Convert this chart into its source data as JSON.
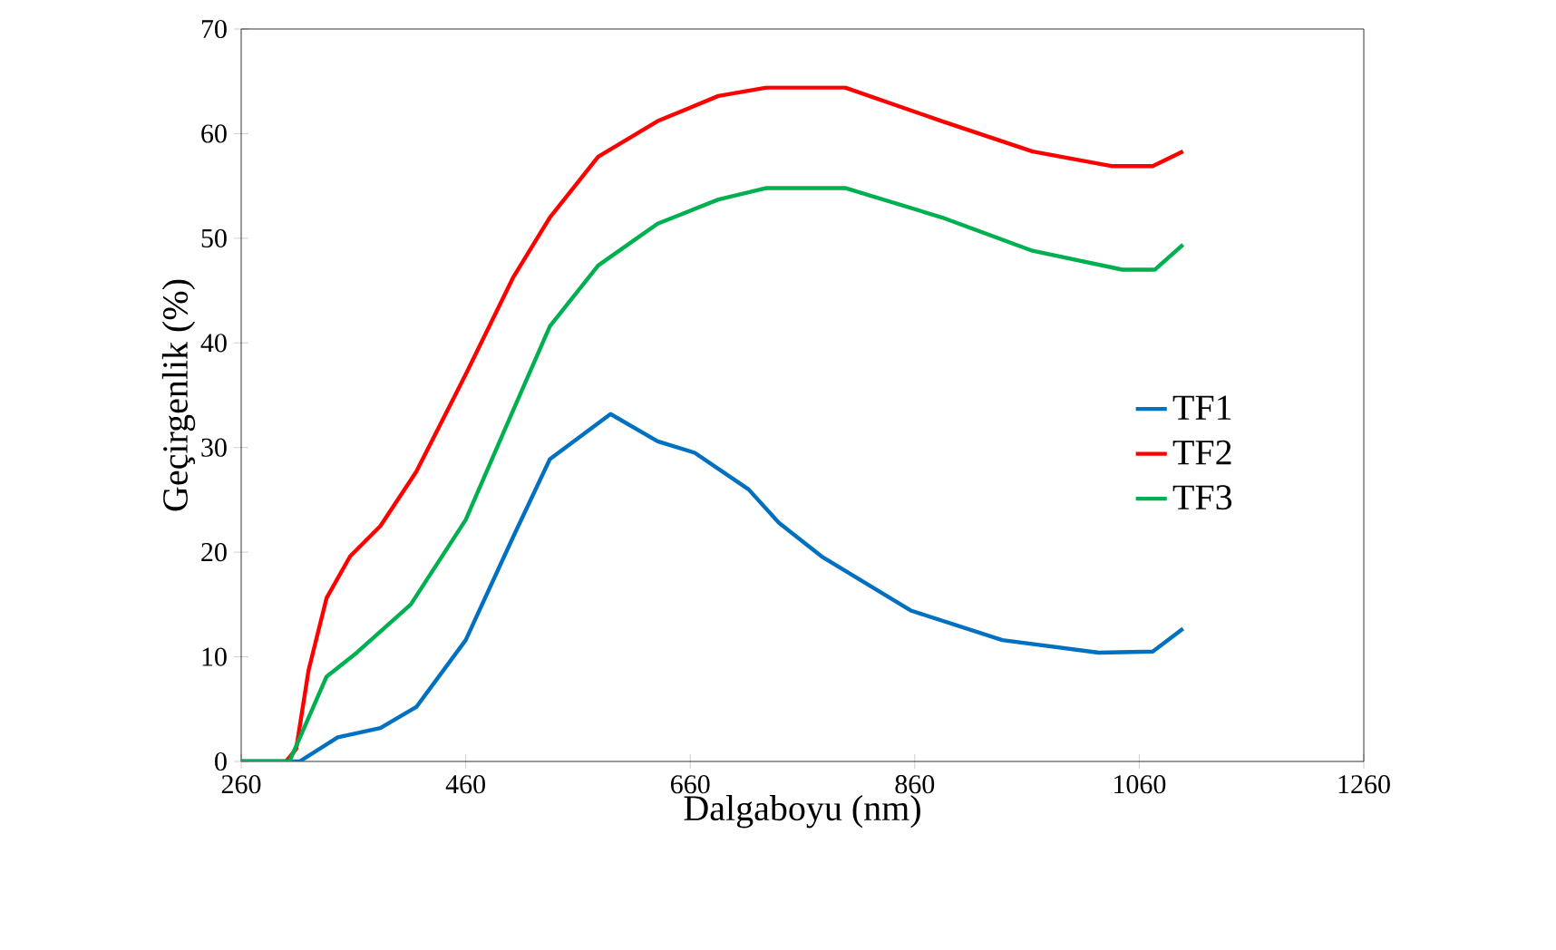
{
  "chart_data": {
    "type": "line",
    "xlabel": "Dalgaboyu (nm)",
    "ylabel": "Geçirgenlik (%)",
    "xlim": [
      260,
      1260
    ],
    "ylim": [
      0,
      70
    ],
    "xticks": [
      260,
      460,
      660,
      860,
      1060,
      1260
    ],
    "yticks": [
      0,
      10,
      20,
      30,
      40,
      50,
      60,
      70
    ],
    "grid": false,
    "legend": "right",
    "marker": "none",
    "line_style": "solid",
    "series": [
      {
        "name": "TF1",
        "color": "#0070c0",
        "x": [
          260,
          312,
          346,
          384,
          416,
          460,
          502,
          535,
          589,
          631,
          664,
          712,
          739,
          777,
          857,
          938,
          1024,
          1072,
          1099
        ],
        "values": [
          0,
          0,
          2.3,
          3.2,
          5.2,
          11.6,
          21.4,
          28.9,
          33.2,
          30.6,
          29.5,
          26,
          22.8,
          19.6,
          14.4,
          11.6,
          10.4,
          10.5,
          12.7
        ]
      },
      {
        "name": "TF2",
        "color": "#ff0000",
        "x": [
          260,
          300,
          309,
          320,
          336,
          357,
          384,
          416,
          460,
          502,
          535,
          578,
          631,
          685,
          728,
          798,
          884,
          965,
          1035,
          1072,
          1099
        ],
        "values": [
          0,
          0,
          1.2,
          8.7,
          15.6,
          19.6,
          22.5,
          27.7,
          37,
          46.2,
          52,
          57.8,
          61.2,
          63.6,
          64.4,
          64.4,
          61.2,
          58.3,
          56.9,
          56.9,
          58.3
        ]
      },
      {
        "name": "TF3",
        "color": "#00b050",
        "x": [
          260,
          303,
          336,
          363,
          411,
          460,
          502,
          535,
          578,
          631,
          685,
          728,
          798,
          884,
          965,
          1045,
          1074,
          1099
        ],
        "values": [
          0,
          0,
          8.1,
          10.4,
          15,
          23.1,
          33.5,
          41.6,
          47.4,
          51.4,
          53.7,
          54.8,
          54.8,
          52,
          48.8,
          47,
          47,
          49.4
        ]
      }
    ]
  }
}
